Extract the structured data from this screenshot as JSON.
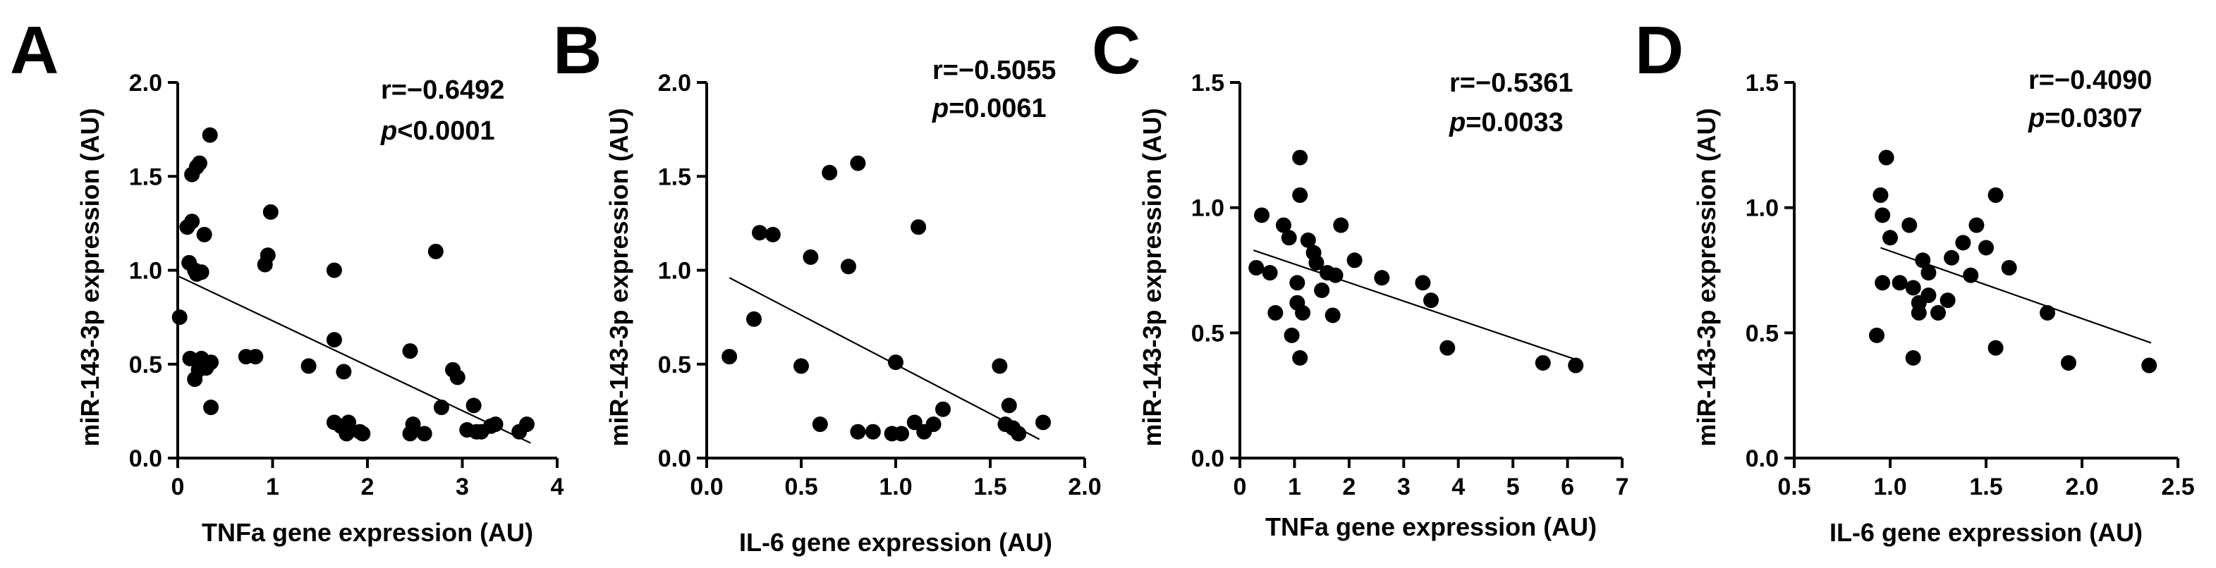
{
  "chart_data": [
    {
      "panel": "A",
      "type": "scatter",
      "xlabel": "TNFa gene expression (AU)",
      "ylabel": "miR-143-3p expression (AU)",
      "xlim": [
        0,
        4
      ],
      "ylim": [
        0,
        2
      ],
      "xticks": [
        0,
        1,
        2,
        3,
        4
      ],
      "yticks": [
        0.0,
        0.5,
        1.0,
        1.5,
        2.0
      ],
      "xtick_labels": [
        "0",
        "1",
        "2",
        "3",
        "4"
      ],
      "ytick_labels": [
        "0.0",
        "0.5",
        "1.0",
        "1.5",
        "2.0"
      ],
      "stats": {
        "r": "r=−0.6492",
        "p_symbol": "p",
        "p_value": "<0.0001"
      },
      "regression": [
        [
          0,
          0.97
        ],
        [
          3.72,
          0.08
        ]
      ],
      "points": [
        [
          0.02,
          0.75
        ],
        [
          0.1,
          1.23
        ],
        [
          0.12,
          1.04
        ],
        [
          0.15,
          1.26
        ],
        [
          0.15,
          1.51
        ],
        [
          0.18,
          1.0
        ],
        [
          0.2,
          0.98
        ],
        [
          0.2,
          1.55
        ],
        [
          0.23,
          1.57
        ],
        [
          0.25,
          0.99
        ],
        [
          0.28,
          1.19
        ],
        [
          0.34,
          1.72
        ],
        [
          0.13,
          0.53
        ],
        [
          0.18,
          0.42
        ],
        [
          0.22,
          0.47
        ],
        [
          0.25,
          0.53
        ],
        [
          0.3,
          0.48
        ],
        [
          0.35,
          0.51
        ],
        [
          0.35,
          0.27
        ],
        [
          0.72,
          0.54
        ],
        [
          0.82,
          0.54
        ],
        [
          0.92,
          1.03
        ],
        [
          0.95,
          1.08
        ],
        [
          0.98,
          1.31
        ],
        [
          1.38,
          0.49
        ],
        [
          1.65,
          1.0
        ],
        [
          1.65,
          0.63
        ],
        [
          1.65,
          0.19
        ],
        [
          1.72,
          0.17
        ],
        [
          1.75,
          0.46
        ],
        [
          1.8,
          0.19
        ],
        [
          1.78,
          0.13
        ],
        [
          1.92,
          0.14
        ],
        [
          1.95,
          0.13
        ],
        [
          2.45,
          0.57
        ],
        [
          2.45,
          0.13
        ],
        [
          2.48,
          0.18
        ],
        [
          2.6,
          0.13
        ],
        [
          2.72,
          1.1
        ],
        [
          2.78,
          0.27
        ],
        [
          2.9,
          0.47
        ],
        [
          2.95,
          0.43
        ],
        [
          3.05,
          0.15
        ],
        [
          3.12,
          0.28
        ],
        [
          3.15,
          0.14
        ],
        [
          3.2,
          0.14
        ],
        [
          3.3,
          0.17
        ],
        [
          3.35,
          0.18
        ],
        [
          3.6,
          0.14
        ],
        [
          3.68,
          0.18
        ]
      ]
    },
    {
      "panel": "B",
      "type": "scatter",
      "xlabel": "IL-6 gene expression (AU)",
      "ylabel": "miR-143-3p expression (AU)",
      "xlim": [
        0,
        2
      ],
      "ylim": [
        0,
        2
      ],
      "xticks": [
        0.0,
        0.5,
        1.0,
        1.5,
        2.0
      ],
      "yticks": [
        0.0,
        0.5,
        1.0,
        1.5,
        2.0
      ],
      "xtick_labels": [
        "0.0",
        "0.5",
        "1.0",
        "1.5",
        "2.0"
      ],
      "ytick_labels": [
        "0.0",
        "0.5",
        "1.0",
        "1.5",
        "2.0"
      ],
      "stats": {
        "r": "r=−0.5055",
        "p_symbol": "p",
        "p_value": "=0.0061"
      },
      "regression": [
        [
          0.12,
          0.96
        ],
        [
          1.76,
          0.1
        ]
      ],
      "points": [
        [
          0.12,
          0.54
        ],
        [
          0.25,
          0.74
        ],
        [
          0.28,
          1.2
        ],
        [
          0.35,
          1.19
        ],
        [
          0.5,
          0.49
        ],
        [
          0.55,
          1.07
        ],
        [
          0.6,
          0.18
        ],
        [
          0.65,
          1.52
        ],
        [
          0.75,
          1.02
        ],
        [
          0.8,
          1.57
        ],
        [
          0.8,
          0.14
        ],
        [
          0.88,
          0.14
        ],
        [
          0.98,
          0.13
        ],
        [
          1.0,
          0.51
        ],
        [
          1.03,
          0.13
        ],
        [
          1.1,
          0.19
        ],
        [
          1.12,
          1.23
        ],
        [
          1.15,
          0.14
        ],
        [
          1.2,
          0.18
        ],
        [
          1.25,
          0.26
        ],
        [
          1.55,
          0.49
        ],
        [
          1.58,
          0.18
        ],
        [
          1.6,
          0.28
        ],
        [
          1.62,
          0.16
        ],
        [
          1.65,
          0.13
        ],
        [
          1.78,
          0.19
        ]
      ]
    },
    {
      "panel": "C",
      "type": "scatter",
      "xlabel": "TNFa gene expression (AU)",
      "ylabel": "miR-143-3p expression (AU)",
      "xlim": [
        0,
        7
      ],
      "ylim": [
        0,
        1.5
      ],
      "xticks": [
        0,
        1,
        2,
        3,
        4,
        5,
        6,
        7
      ],
      "yticks": [
        0.0,
        0.5,
        1.0,
        1.5
      ],
      "xtick_labels": [
        "0",
        "1",
        "2",
        "3",
        "4",
        "5",
        "6",
        "7"
      ],
      "ytick_labels": [
        "0.0",
        "0.5",
        "1.0",
        "1.5"
      ],
      "stats": {
        "r": "r=−0.5361",
        "p_symbol": "p",
        "p_value": "=0.0033"
      },
      "regression": [
        [
          0.25,
          0.83
        ],
        [
          6.2,
          0.39
        ]
      ],
      "points": [
        [
          0.3,
          0.76
        ],
        [
          0.4,
          0.97
        ],
        [
          0.55,
          0.74
        ],
        [
          0.65,
          0.58
        ],
        [
          0.8,
          0.93
        ],
        [
          0.9,
          0.88
        ],
        [
          0.95,
          0.49
        ],
        [
          1.05,
          0.62
        ],
        [
          1.05,
          0.7
        ],
        [
          1.1,
          1.05
        ],
        [
          1.1,
          1.2
        ],
        [
          1.1,
          0.4
        ],
        [
          1.15,
          0.58
        ],
        [
          1.25,
          0.87
        ],
        [
          1.35,
          0.82
        ],
        [
          1.4,
          0.78
        ],
        [
          1.5,
          0.67
        ],
        [
          1.6,
          0.74
        ],
        [
          1.7,
          0.57
        ],
        [
          1.75,
          0.73
        ],
        [
          1.85,
          0.93
        ],
        [
          2.1,
          0.79
        ],
        [
          2.6,
          0.72
        ],
        [
          3.35,
          0.7
        ],
        [
          3.5,
          0.63
        ],
        [
          3.8,
          0.44
        ],
        [
          5.55,
          0.38
        ],
        [
          6.15,
          0.37
        ]
      ]
    },
    {
      "panel": "D",
      "type": "scatter",
      "xlabel": "IL-6 gene expression (AU)",
      "ylabel": "miR-143-3p expression (AU)",
      "xlim": [
        0.5,
        2.5
      ],
      "ylim": [
        0,
        1.5
      ],
      "xticks": [
        0.5,
        1.0,
        1.5,
        2.0,
        2.5
      ],
      "yticks": [
        0.0,
        0.5,
        1.0,
        1.5
      ],
      "xtick_labels": [
        "0.5",
        "1.0",
        "1.5",
        "2.0",
        "2.5"
      ],
      "ytick_labels": [
        "0.0",
        "0.5",
        "1.0",
        "1.5"
      ],
      "stats": {
        "r": "r=−0.4090",
        "p_symbol": "p",
        "p_value": "=0.0307"
      },
      "regression": [
        [
          0.95,
          0.84
        ],
        [
          2.36,
          0.46
        ]
      ],
      "points": [
        [
          0.93,
          0.49
        ],
        [
          0.95,
          1.05
        ],
        [
          0.96,
          0.97
        ],
        [
          0.96,
          0.7
        ],
        [
          0.98,
          1.2
        ],
        [
          1.0,
          0.88
        ],
        [
          1.05,
          0.7
        ],
        [
          1.1,
          0.93
        ],
        [
          1.12,
          0.68
        ],
        [
          1.12,
          0.4
        ],
        [
          1.15,
          0.62
        ],
        [
          1.15,
          0.58
        ],
        [
          1.17,
          0.79
        ],
        [
          1.2,
          0.65
        ],
        [
          1.2,
          0.74
        ],
        [
          1.25,
          0.58
        ],
        [
          1.3,
          0.63
        ],
        [
          1.32,
          0.8
        ],
        [
          1.38,
          0.86
        ],
        [
          1.42,
          0.73
        ],
        [
          1.45,
          0.93
        ],
        [
          1.5,
          0.84
        ],
        [
          1.55,
          0.44
        ],
        [
          1.55,
          1.05
        ],
        [
          1.62,
          0.76
        ],
        [
          1.82,
          0.58
        ],
        [
          1.93,
          0.38
        ],
        [
          2.35,
          0.37
        ]
      ]
    }
  ]
}
